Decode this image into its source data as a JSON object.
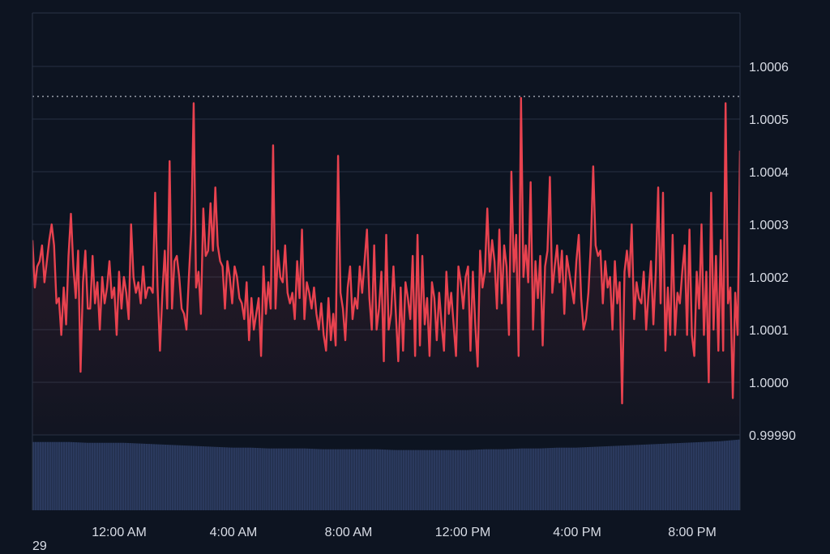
{
  "chart_data": {
    "type": "line",
    "x_labels": [
      "12:00 AM",
      "4:00 AM",
      "8:00 AM",
      "12:00 PM",
      "4:00 PM",
      "8:00 PM"
    ],
    "y_tick_labels": [
      "0.99990",
      "1.0000",
      "1.0001",
      "1.0002",
      "1.0003",
      "1.0004",
      "1.0005",
      "1.0006"
    ],
    "ylim": [
      0.9999,
      1.0007
    ],
    "reference_line": 1.000543,
    "grid": true,
    "colors": {
      "background": "#0d1421",
      "line_below_reference": "#e8424f",
      "line_above_reference": "#19c37d",
      "volume_bars": "#2b3a5e",
      "grid": "#273142"
    },
    "series": [
      {
        "values": [
          1.00027,
          1.00018,
          1.00022,
          1.00023,
          1.00026,
          1.00019,
          1.00023,
          1.00027,
          1.0003,
          1.00026,
          1.00015,
          1.00016,
          1.00009,
          1.00018,
          1.00011,
          1.00024,
          1.00032,
          1.00022,
          1.00016,
          1.00025,
          1.00002,
          1.00019,
          1.00025,
          1.00014,
          1.00014,
          1.00024,
          1.00015,
          1.00019,
          1.0001,
          1.0002,
          1.00015,
          1.00018,
          1.00023,
          1.00016,
          1.00018,
          1.00009,
          1.00021,
          1.00014,
          1.0002,
          1.00017,
          1.00012,
          1.0003,
          1.0002,
          1.00017,
          1.00019,
          1.00015,
          1.00022,
          1.00016,
          1.00018,
          1.00018,
          1.00017,
          1.00036,
          1.00018,
          1.00006,
          1.00017,
          1.00025,
          1.00014,
          1.00042,
          1.00014,
          1.00023,
          1.00024,
          1.0002,
          1.00014,
          1.00013,
          1.0001,
          1.0002,
          1.00029,
          1.00053,
          1.00018,
          1.00021,
          1.00013,
          1.00033,
          1.00024,
          1.00025,
          1.00034,
          1.00025,
          1.00037,
          1.00026,
          1.00023,
          1.00022,
          1.00014,
          1.00023,
          1.0002,
          1.00015,
          1.00022,
          1.0002,
          1.00016,
          1.00015,
          1.00012,
          1.00019,
          1.00008,
          1.00016,
          1.0001,
          1.00013,
          1.00016,
          1.00005,
          1.00022,
          1.00013,
          1.00019,
          1.00014,
          1.00045,
          1.00014,
          1.00025,
          1.0002,
          1.00019,
          1.00026,
          1.00017,
          1.00015,
          1.00017,
          1.00012,
          1.00023,
          1.00016,
          1.00029,
          1.00012,
          1.00019,
          1.00017,
          1.00014,
          1.00018,
          1.00013,
          1.0001,
          1.00015,
          1.00009,
          1.00006,
          1.00016,
          1.00008,
          1.00013,
          1.00007,
          1.00043,
          1.00017,
          1.00014,
          1.00008,
          1.00018,
          1.00022,
          1.00012,
          1.00016,
          1.00014,
          1.00022,
          1.00017,
          1.00023,
          1.00029,
          1.00016,
          1.0001,
          1.00026,
          1.0001,
          1.00014,
          1.00021,
          1.00004,
          1.00028,
          1.0001,
          1.00013,
          1.00022,
          1.00013,
          1.00004,
          1.00018,
          1.00006,
          1.00019,
          1.00016,
          1.00012,
          1.00024,
          1.00005,
          1.00028,
          1.00007,
          1.00024,
          1.00011,
          1.00016,
          1.00005,
          1.00019,
          1.00016,
          1.00008,
          1.00017,
          1.00011,
          1.00006,
          1.00021,
          1.00013,
          1.00017,
          1.00011,
          1.00005,
          1.00022,
          1.00019,
          1.00014,
          1.0002,
          1.00022,
          1.00006,
          1.00021,
          1.00011,
          1.00003,
          1.00025,
          1.00018,
          1.00021,
          1.00033,
          1.00021,
          1.00027,
          1.00023,
          1.00014,
          1.00029,
          1.00015,
          1.00026,
          1.00022,
          1.00009,
          1.0004,
          1.00021,
          1.00028,
          1.00005,
          1.00054,
          1.0002,
          1.00026,
          1.00019,
          1.00038,
          1.0001,
          1.00023,
          1.00016,
          1.00024,
          1.00007,
          1.00022,
          1.00025,
          1.00039,
          1.00017,
          1.00022,
          1.00026,
          1.00019,
          1.00025,
          1.00013,
          1.00024,
          1.00021,
          1.00018,
          1.00015,
          1.00023,
          1.00028,
          1.00016,
          1.0001,
          1.00012,
          1.00017,
          1.00026,
          1.00041,
          1.00026,
          1.00024,
          1.00025,
          1.00015,
          1.00023,
          1.00018,
          1.0002,
          1.0001,
          1.00023,
          1.00015,
          1.00019,
          0.99996,
          1.00021,
          1.00025,
          1.0002,
          1.0003,
          1.00012,
          1.00019,
          1.00016,
          1.00015,
          1.00021,
          1.0001,
          1.00017,
          1.00023,
          1.00011,
          1.00021,
          1.00037,
          1.00015,
          1.00036,
          1.00006,
          1.00018,
          1.00009,
          1.00028,
          1.00009,
          1.00017,
          1.00015,
          1.00021,
          1.00026,
          1.00009,
          1.00029,
          1.00009,
          1.00005,
          1.00021,
          1.00014,
          1.0003,
          1.00009,
          1.00021,
          1.0,
          1.00036,
          1.0001,
          1.00024,
          1.00006,
          1.00027,
          1.00006,
          1.00053,
          1.00015,
          1.00018,
          0.99997,
          1.00017,
          1.00009,
          1.00044
        ]
      }
    ],
    "volume_note_values": [
      0.85,
      0.85,
      0.85,
      0.84,
      0.84,
      0.84,
      0.83,
      0.82,
      0.81,
      0.8,
      0.79,
      0.78,
      0.78,
      0.77,
      0.77,
      0.77,
      0.76,
      0.76,
      0.76,
      0.76,
      0.75,
      0.75,
      0.75,
      0.75,
      0.75,
      0.76,
      0.76,
      0.77,
      0.77,
      0.78,
      0.78,
      0.79,
      0.8,
      0.81,
      0.82,
      0.83,
      0.84,
      0.85,
      0.86,
      0.88
    ]
  },
  "corner_text": "29"
}
